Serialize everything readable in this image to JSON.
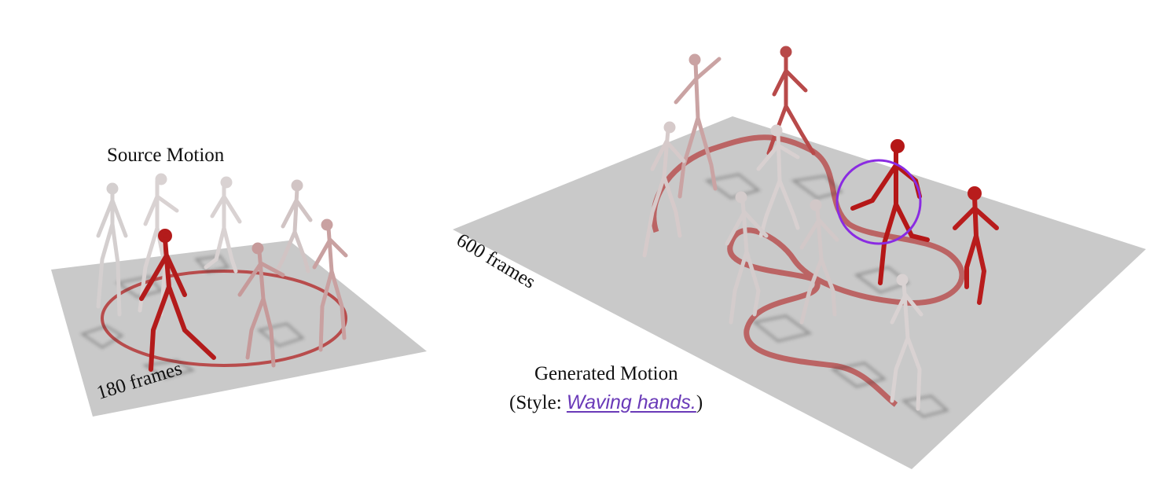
{
  "source": {
    "title": "Source Motion",
    "frames_label": "180 frames"
  },
  "generated": {
    "frames_label": "600 frames",
    "title": "Generated Motion",
    "style_prefix": "(Style: ",
    "style_value": " Waving hands.",
    "style_suffix": ")"
  },
  "colors": {
    "ground": "#c9c9c9",
    "trajectory": "#b22222",
    "highlight_circle": "#8a2be2",
    "figure_dark": "#b31b1b",
    "figure_light": "#d9cccc",
    "style_text": "#6a3ab8"
  }
}
